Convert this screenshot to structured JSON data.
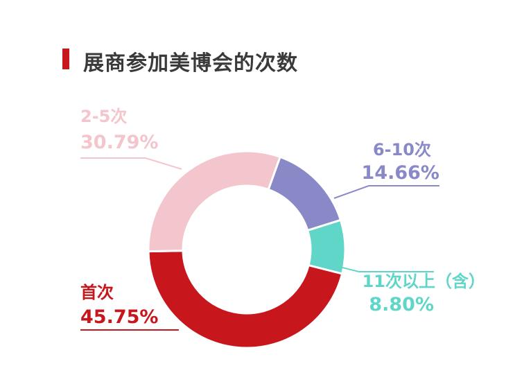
{
  "colors": {
    "accent": "#c8161d",
    "title_text": "#3a3a3a",
    "series": [
      "#c8161d",
      "#f2c6cc",
      "#8a89c8",
      "#5fd6c8"
    ]
  },
  "chart_data": {
    "type": "pie",
    "title": "展商参加美博会的次数",
    "donut": true,
    "slices": [
      {
        "name": "首次",
        "value": 45.75,
        "label": "45.75%",
        "color": "#c8161d"
      },
      {
        "name": "2-5次",
        "value": 30.79,
        "label": "30.79%",
        "color": "#f2c6cc"
      },
      {
        "name": "6-10次",
        "value": 14.66,
        "label": "14.66%",
        "color": "#8a89c8"
      },
      {
        "name": "11次以上（含）",
        "value": 8.8,
        "label": "8.80%",
        "color": "#5fd6c8"
      }
    ]
  }
}
